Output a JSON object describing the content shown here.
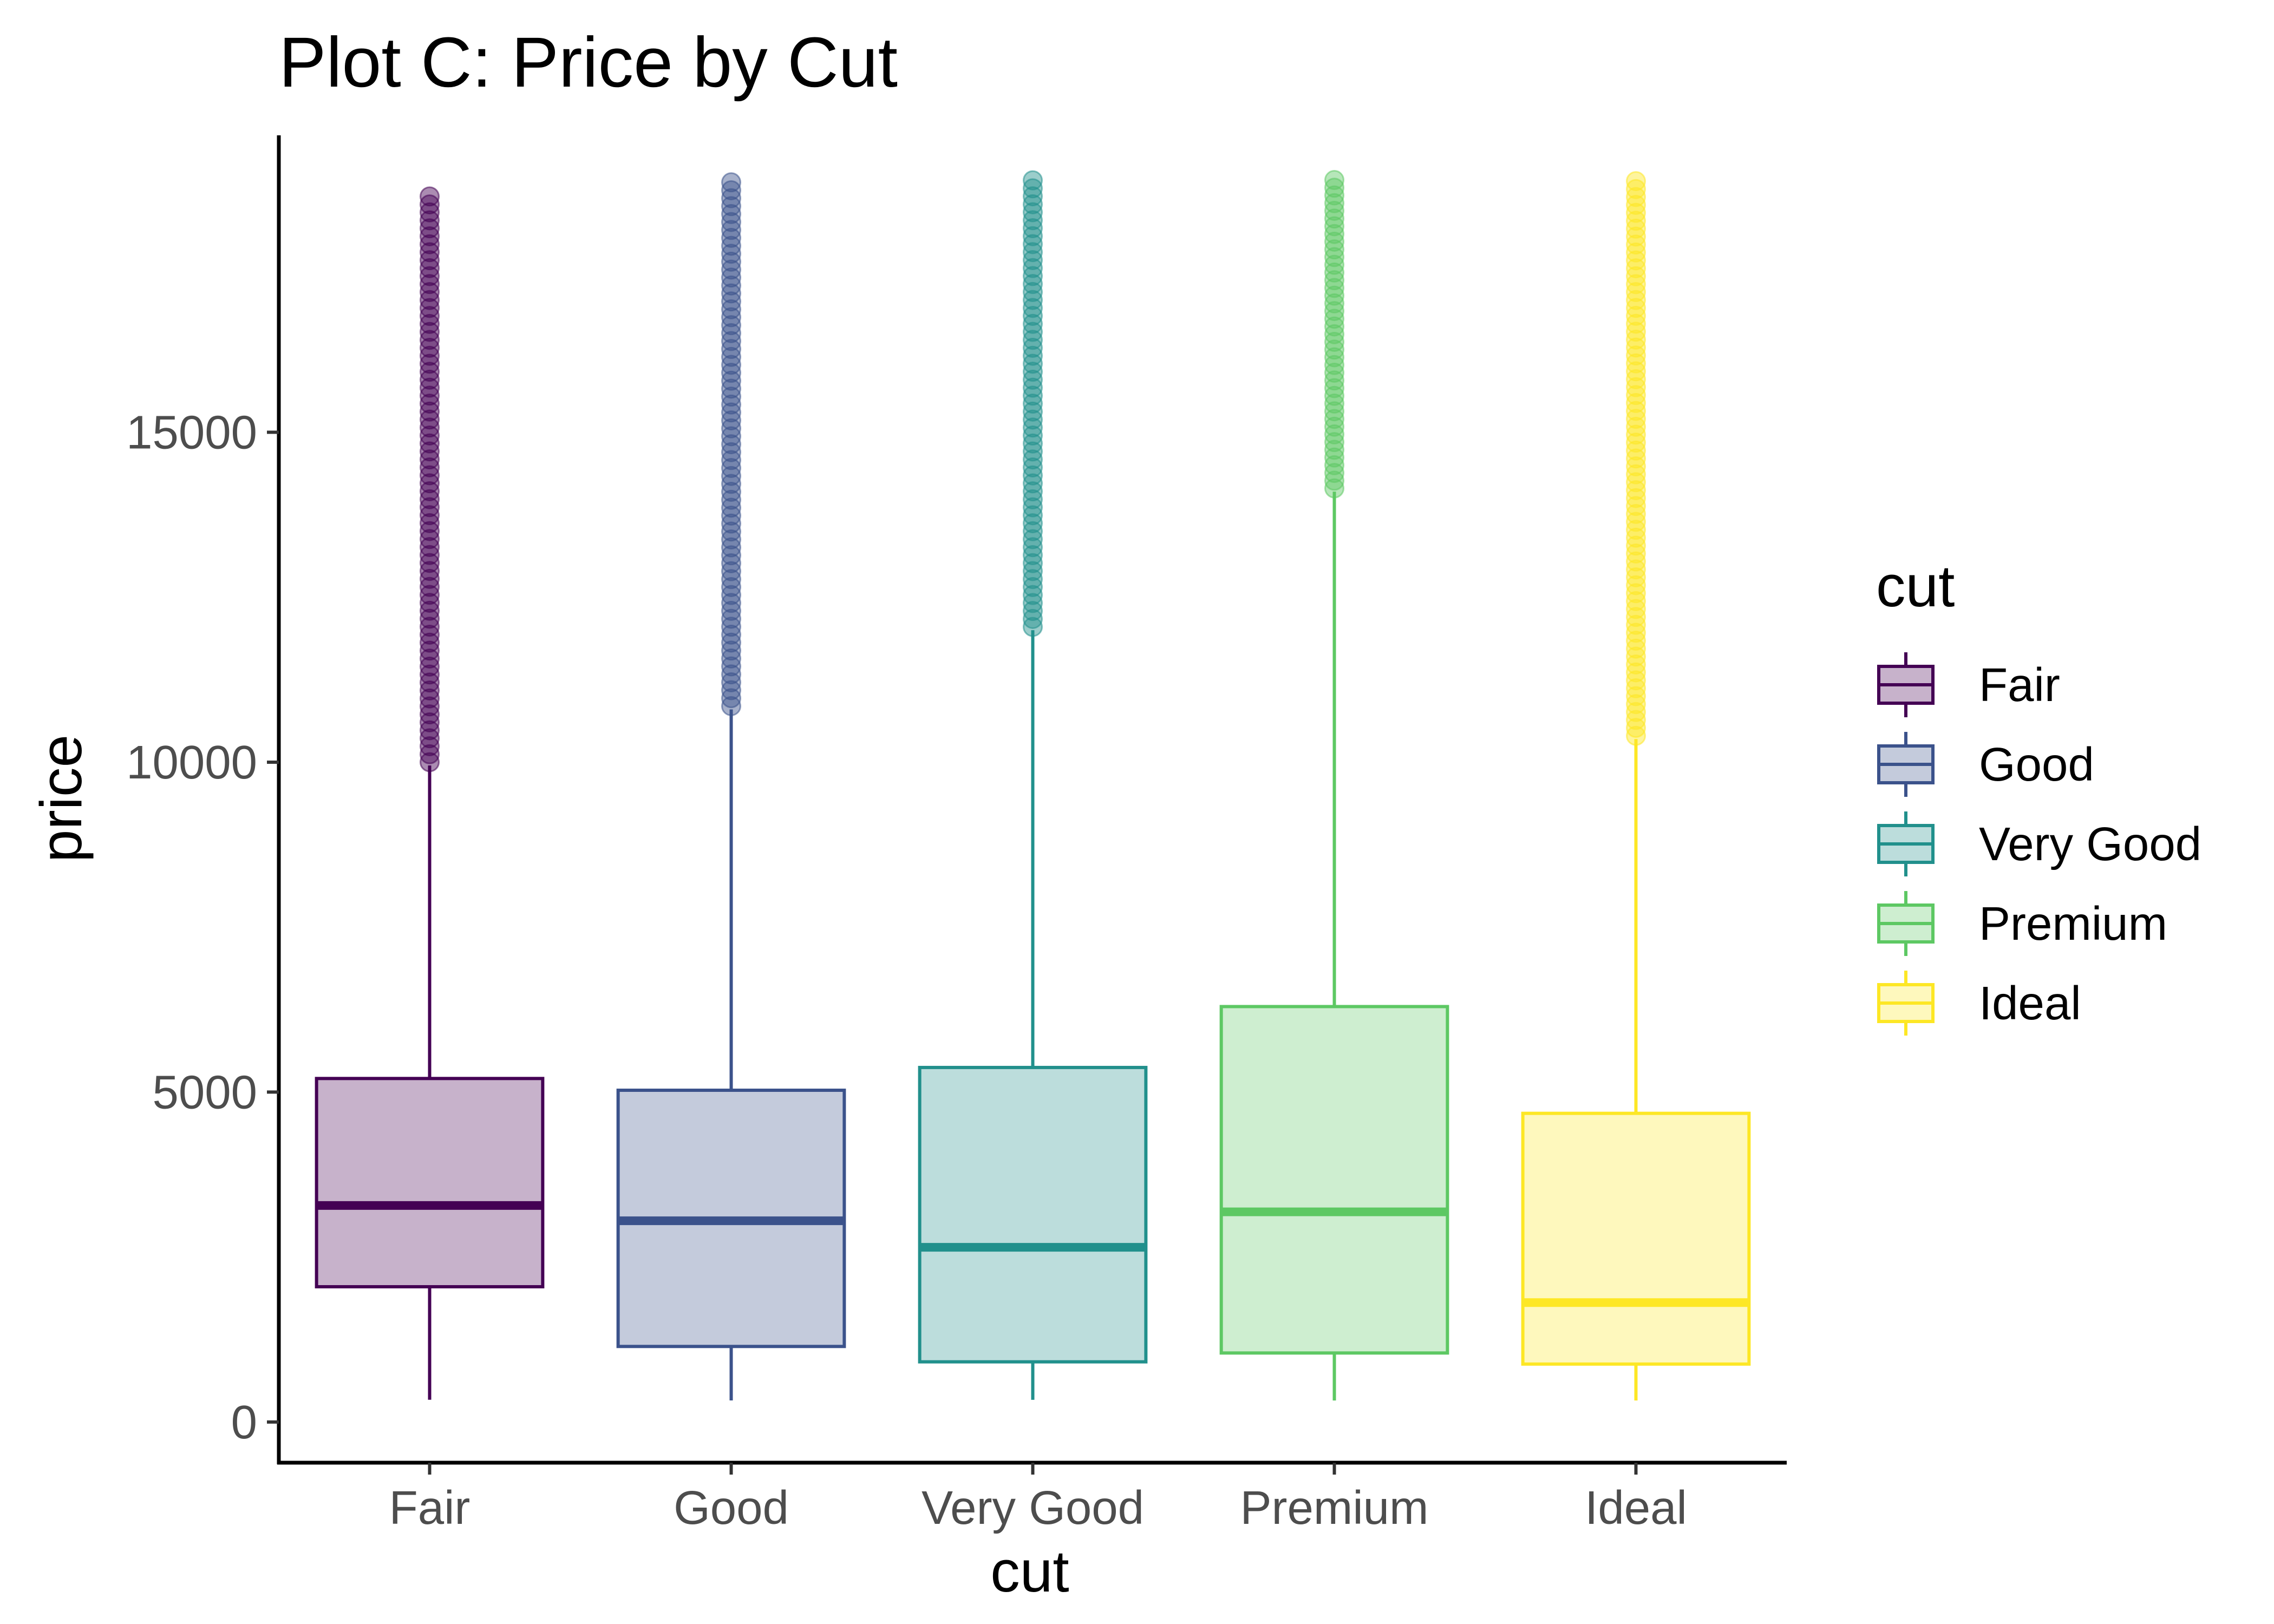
{
  "chart_data": {
    "type": "boxplot",
    "title": "Plot C: Price by Cut",
    "xlabel": "cut",
    "ylabel": "price",
    "categories": [
      "Fair",
      "Good",
      "Very Good",
      "Premium",
      "Ideal"
    ],
    "ylim": [
      -600,
      19500
    ],
    "y_ticks": [
      0,
      5000,
      10000,
      15000
    ],
    "y_tick_labels": [
      "0",
      "5000",
      "10000",
      "15000"
    ],
    "grid": false,
    "legend": {
      "title": "cut",
      "placement": "right",
      "entries": [
        "Fair",
        "Good",
        "Very Good",
        "Premium",
        "Ideal"
      ]
    },
    "series": [
      {
        "category": "Fair",
        "color": "#440154",
        "min": 337,
        "q1": 2050,
        "median": 3282,
        "q3": 5206,
        "whisker_high": 9950,
        "outlier_min": 10000,
        "outlier_max": 18574
      },
      {
        "category": "Good",
        "color": "#3b528b",
        "min": 327,
        "q1": 1145,
        "median": 3050,
        "q3": 5028,
        "whisker_high": 10800,
        "outlier_min": 10850,
        "outlier_max": 18788
      },
      {
        "category": "Very Good",
        "color": "#21908c",
        "min": 336,
        "q1": 912,
        "median": 2648,
        "q3": 5373,
        "whisker_high": 12000,
        "outlier_min": 12050,
        "outlier_max": 18818
      },
      {
        "category": "Premium",
        "color": "#5dc863",
        "min": 326,
        "q1": 1046,
        "median": 3185,
        "q3": 6296,
        "whisker_high": 14100,
        "outlier_min": 14150,
        "outlier_max": 18823
      },
      {
        "category": "Ideal",
        "color": "#fde725",
        "min": 326,
        "q1": 878,
        "median": 1810,
        "q3": 4678,
        "whisker_high": 10350,
        "outlier_min": 10400,
        "outlier_max": 18806
      }
    ]
  }
}
